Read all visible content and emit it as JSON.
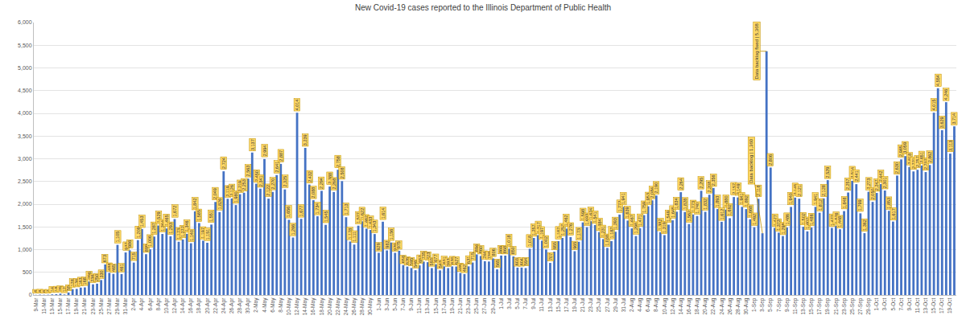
{
  "chart_data": {
    "type": "bar",
    "title": "New Covid-19 cases reported to the Illinois Department of Public Health",
    "color": "#4472C4",
    "grid": true,
    "data_labels": true,
    "ylim": [
      0,
      6000
    ],
    "yticks": [
      0,
      500,
      {
        "value": 1000,
        "label": "1,000"
      },
      {
        "value": 1500,
        "label": "1,500"
      },
      {
        "value": 2000,
        "label": "2,000"
      },
      {
        "value": 2500,
        "label": "2,500"
      },
      {
        "value": 3000,
        "label": "3,000"
      },
      {
        "value": 3500,
        "label": "3,500"
      },
      {
        "value": 4000,
        "label": "4,000"
      },
      {
        "value": 4500,
        "label": "4,500"
      },
      {
        "value": 5000,
        "label": "5,000"
      },
      {
        "value": 5500,
        "label": "5,500"
      },
      {
        "value": 6000,
        "label": "6,000"
      }
    ],
    "categories": [
      "9-Mar",
      null,
      "11-Mar",
      null,
      "13-Mar",
      null,
      "15-Mar",
      null,
      "17-Mar",
      null,
      "19-Mar",
      null,
      "21-Mar",
      null,
      "23-Mar",
      null,
      "25-Mar",
      null,
      "27-Mar",
      null,
      "29-Mar",
      null,
      "31-Mar",
      null,
      "2-Apr",
      null,
      "4-Apr",
      null,
      "6-Apr",
      null,
      "8-Apr",
      null,
      "10-Apr",
      null,
      "12-Apr",
      null,
      "14-Apr",
      null,
      "16-Apr",
      null,
      "18-Apr",
      null,
      "20-Apr",
      null,
      "22-Apr",
      null,
      "24-Apr",
      null,
      "26-Apr",
      null,
      "28-Apr",
      null,
      "30-Apr",
      null,
      "2-May",
      null,
      "4-May",
      null,
      "6-May",
      null,
      "8-May",
      null,
      "10-May",
      null,
      "12-May",
      null,
      "14-May",
      null,
      "16-May",
      null,
      "18-May",
      null,
      "20-May",
      null,
      "22-May",
      null,
      "24-May",
      null,
      "26-May",
      null,
      "28-May",
      null,
      "30-May",
      null,
      "1-Jun",
      null,
      "3-Jun",
      null,
      "5-Jun",
      null,
      "7-Jun",
      null,
      "9-Jun",
      null,
      "11-Jun",
      null,
      "13-Jun",
      null,
      "15-Jun",
      null,
      "17-Jun",
      null,
      "19-Jun",
      null,
      "21-Jun",
      null,
      "23-Jun",
      null,
      "25-Jun",
      null,
      "27-Jun",
      null,
      "29-Jun",
      null,
      "1-Jul",
      null,
      "3-Jul",
      null,
      "5-Jul",
      null,
      "7-Jul",
      null,
      "9-Jul",
      null,
      "11-Jul",
      null,
      "13-Jul",
      null,
      "15-Jul",
      null,
      "17-Jul",
      null,
      "19-Jul",
      null,
      "21-Jul",
      null,
      "23-Jul",
      null,
      "25-Jul",
      null,
      "27-Jul",
      null,
      "29-Jul",
      null,
      "31-Jul",
      null,
      "2-Aug",
      null,
      "4-Aug",
      null,
      "6-Aug",
      null,
      "8-Aug",
      null,
      "10-Aug",
      null,
      "12-Aug",
      null,
      "14-Aug",
      null,
      "16-Aug",
      null,
      "18-Aug",
      null,
      "20-Aug",
      null,
      "22-Aug",
      null,
      "24-Aug",
      null,
      "26-Aug",
      null,
      "28-Aug",
      null,
      "30-Aug",
      null,
      "1-Sep",
      null,
      "3-Sep",
      null,
      "5-Sep",
      null,
      "7-Sep",
      null,
      "9-Sep",
      null,
      "11-Sep",
      null,
      "13-Sep",
      null,
      "15-Sep",
      null,
      "17-Sep",
      null,
      "19-Sep",
      null,
      "21-Sep",
      null,
      "23-Sep",
      null,
      "25-Sep",
      null,
      "27-Sep",
      null,
      "29-Sep",
      null,
      "1-Oct",
      null,
      "3-Oct",
      null,
      "5-Oct",
      null,
      "7-Oct",
      null,
      "9-Oct",
      null,
      "11-Oct",
      null,
      "13-Oct",
      null,
      "15-Oct",
      null,
      "17-Oct",
      null,
      "19-Oct",
      null
    ],
    "values": [
      4,
      8,
      6,
      7,
      14,
      18,
      29,
      12,
      55,
      128,
      134,
      163,
      168,
      296,
      236,
      250,
      330,
      673,
      488,
      465,
      1105,
      461,
      937,
      986,
      715,
      1209,
      1453,
      899,
      1006,
      1287,
      1529,
      1344,
      1465,
      1293,
      1672,
      1173,
      1222,
      1346,
      1140,
      1842,
      1585,
      1197,
      1151,
      1551,
      2049,
      1826,
      2724,
      2119,
      2126,
      1980,
      2219,
      2253,
      2563,
      3137,
      2450,
      2341,
      2994,
      2122,
      2270,
      2641,
      2887,
      2325,
      1656,
      1266,
      4014,
      1677,
      3239,
      2432,
      2088,
      1734,
      2294,
      1545,
      2388,
      2268,
      2758,
      2508,
      1713,
      1178,
      1111,
      1527,
      1622,
      1462,
      1433,
      1343,
      929,
      1614,
      982,
      1156,
      929,
      975,
      658,
      626,
      595,
      546,
      652,
      735,
      723,
      593,
      677,
      543,
      631,
      593,
      630,
      627,
      485,
      462,
      631,
      715,
      894,
      860,
      744,
      738,
      806,
      565,
      869,
      868,
      1018,
      850,
      603,
      604,
      594,
      1018,
      1257,
      1317,
      1197,
      1002,
      707,
      955,
      1187,
      1257,
      1462,
      1276,
      965,
      1173,
      1598,
      1493,
      1624,
      1541,
      1384,
      1231,
      1038,
      1187,
      1393,
      1772,
      1941,
      1639,
      1467,
      1298,
      1471,
      1759,
      1953,
      2084,
      2190,
      1382,
      1319,
      1549,
      1645,
      1834,
      2264,
      1828,
      1562,
      1773,
      1740,
      2295,
      1832,
      2208,
      2356,
      1893,
      1612,
      1880,
      1692,
      2157,
      2149,
      1941,
      1892,
      1668,
      1492,
      2118,
      1360,
      5368,
      2806,
      1477,
      1373,
      1298,
      1486,
      1940,
      2145,
      2121,
      1502,
      1402,
      1486,
      1941,
      1812,
      2128,
      2529,
      1477,
      1526,
      1448,
      1848,
      2257,
      2514,
      2441,
      1799,
      1362,
      2273,
      2050,
      2247,
      2442,
      2301,
      1853,
      1617,
      2630,
      2985,
      3059,
      2818,
      2721,
      2757,
      2851,
      2707,
      2862,
      4015,
      4554,
      3629,
      4246,
      3113,
      3714
    ],
    "value_labels": [
      "4",
      "8",
      "6",
      "7",
      "14",
      "18",
      "29",
      "12",
      "55",
      "128",
      "134",
      "163",
      "168",
      "296",
      "236",
      "250",
      "330",
      "673",
      "488",
      "465",
      "1,105",
      "461",
      "937",
      "986",
      "715",
      "1,209",
      "1,453",
      "899",
      "1,006",
      "1,287",
      "1,529",
      "1,344",
      "1,465",
      "1,293",
      "1,672",
      "1,173",
      "1,222",
      "1,346",
      "1,140",
      "1,842",
      "1,585",
      "1,197",
      "1,151",
      "1,551",
      "2,049",
      "1,826",
      "2,724",
      "2,119",
      "2,126",
      "1,980",
      "2,219",
      "2,253",
      "2,563",
      "3,137",
      "2,450",
      "2,341",
      "2,994",
      "2,122",
      "2,270",
      "2,641",
      "2,887",
      "2,325",
      "1,656",
      "1,266",
      "4,014",
      "1,677",
      "3,239",
      "2,432",
      "2,088",
      "1,734",
      "2,294",
      "1,545",
      "2,388",
      "2,268",
      "2,758",
      "2,508",
      "1,713",
      "1,178",
      "1,111",
      "1,527",
      "1,622",
      "1,462",
      "1,433",
      "1,343",
      "929",
      "1,614",
      "982",
      "1,156",
      "929",
      "975",
      "658",
      "626",
      "595",
      "546",
      "652",
      "735",
      "723",
      "593",
      "677",
      "543",
      "631",
      "593",
      "630",
      "627",
      "485",
      "462",
      "631",
      "715",
      "894",
      "860",
      "744",
      "738",
      "806",
      "565",
      "869",
      "868",
      "1,018",
      "850",
      "603",
      "604",
      "594",
      "1,018",
      "1,257",
      "1,317",
      "1,197",
      "1,002",
      "707",
      "955",
      "1,187",
      "1,257",
      "1,462",
      "1,276",
      "965",
      "1,173",
      "1,598",
      "1,493",
      "1,624",
      "1,541",
      "1,384",
      "1,231",
      "1,038",
      "1,187",
      "1,393",
      "1,772",
      "1,941",
      "1,639",
      "1,467",
      "1,298",
      "1,471",
      "1,759",
      "1,953",
      "2,084",
      "2,190",
      "1,382",
      "1,319",
      "1,549",
      "1,645",
      "1,834",
      "2,264",
      "1,828",
      "1,562",
      "1,773",
      "1,740",
      "2,295",
      "1,832",
      "2,208",
      "2,356",
      "1,893",
      "1,612",
      "1,880",
      "1,692",
      "2,157",
      "2,149",
      "1,941",
      "1,892",
      "1,668",
      "1,492",
      "2,118",
      null,
      null,
      "2,806",
      "1,477",
      "1,373",
      "1,298",
      "1,486",
      "1,940",
      "2,145",
      "2,121",
      "1,502",
      "1,402",
      "1,486",
      "1,941",
      "1,812",
      "2,128",
      "2,529",
      "1,477",
      "1,526",
      "1,448",
      "1,848",
      "2,257",
      "2,514",
      "2,441",
      "1,799",
      "1,362",
      "2,273",
      "2,050",
      "2,247",
      "2,442",
      "2,301",
      "1,853",
      "1,617",
      "2,630",
      "2,985",
      "3,059",
      "2,818",
      "2,721",
      "2,757",
      "2,851",
      "2,707",
      "2,862",
      "4,015",
      "4,554",
      "3,629",
      "4,246",
      "3,113",
      "3,714"
    ],
    "annotations": [
      {
        "x": 178,
        "text": "Data backlog | 1,360"
      },
      {
        "x": 179,
        "text": "Data backlog fixed | 5,368"
      }
    ]
  }
}
